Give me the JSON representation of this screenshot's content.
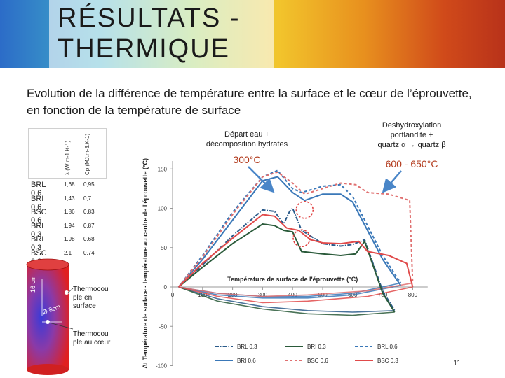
{
  "header": {
    "title_line1": "RÉSULTATS -",
    "title_line2": "THERMIQUE"
  },
  "subtitle": "Evolution de la différence de température entre la surface et le cœur de l’éprouvette, en fonction de la température de surface",
  "annotations": {
    "left_text": [
      "Départ eau +",
      "décomposition hydrates"
    ],
    "left_temp": "300°C",
    "right_text": [
      "Deshydroxylation",
      "portlandite +",
      "quartz α → quartz β"
    ],
    "right_temp": "600 - 650°C"
  },
  "properties": {
    "lambda_header": "λ (W.m-1.K-1)",
    "cp_header": "Cp (MJ.m-3.K-1)",
    "rows": [
      {
        "name": "BRL 0,6",
        "lambda": "1,68",
        "cp": "0,95"
      },
      {
        "name": "BRI 0,6",
        "lambda": "1,43",
        "cp": "0,7"
      },
      {
        "name": "BSC 0,6",
        "lambda": "1,86",
        "cp": "0,83"
      },
      {
        "name": "BRL 0,3",
        "lambda": "1,94",
        "cp": "0,87"
      },
      {
        "name": "BRI 0,3",
        "lambda": "1,98",
        "cp": "0,68"
      },
      {
        "name": "BSC 0,3",
        "lambda": "2,1",
        "cp": "0,74"
      }
    ]
  },
  "specimen": {
    "height_label": "16 cm",
    "diameter_label": "Ø 8cm",
    "thermo_surface": [
      "Thermocou",
      "ple en",
      "surface"
    ],
    "thermo_core": [
      "Thermocou",
      "ple au cœur"
    ]
  },
  "page_number": "11",
  "colors": {
    "brl": "#3a78b8",
    "bri": "#2a5a3a",
    "bsc": "#e04a4a"
  },
  "chart_data": {
    "type": "line",
    "xlabel": "Température de surface de l'éprouvette (°C)",
    "ylabel": "Δt Température de surface - température au centre de l'éprouvette (°C)",
    "xlim": [
      0,
      850
    ],
    "ylim": [
      -100,
      160
    ],
    "x_ticks": [
      0,
      100,
      200,
      300,
      400,
      500,
      600,
      700,
      800
    ],
    "y_ticks": [
      -100,
      -50,
      0,
      50,
      100,
      150
    ],
    "legend_position": "bottom",
    "series": [
      {
        "name": "BRL 0.3",
        "style": "dashdot",
        "color": "#2a5a8a",
        "values": [
          [
            20,
            0
          ],
          [
            100,
            28
          ],
          [
            200,
            65
          ],
          [
            300,
            98
          ],
          [
            340,
            96
          ],
          [
            370,
            80
          ],
          [
            390,
            96
          ],
          [
            400,
            100
          ],
          [
            430,
            72
          ],
          [
            500,
            55
          ],
          [
            560,
            52
          ],
          [
            600,
            54
          ],
          [
            640,
            60
          ],
          [
            700,
            -5
          ],
          [
            740,
            -30
          ]
        ]
      },
      {
        "name": "BRI 0.3",
        "style": "solid",
        "color": "#2a5a3a",
        "values": [
          [
            20,
            0
          ],
          [
            100,
            25
          ],
          [
            200,
            55
          ],
          [
            300,
            80
          ],
          [
            340,
            78
          ],
          [
            370,
            72
          ],
          [
            400,
            70
          ],
          [
            430,
            45
          ],
          [
            500,
            42
          ],
          [
            560,
            40
          ],
          [
            610,
            42
          ],
          [
            640,
            58
          ],
          [
            700,
            -8
          ],
          [
            740,
            -32
          ]
        ]
      },
      {
        "name": "BRL 0.6",
        "style": "dashed",
        "color": "#3a78b8",
        "values": [
          [
            20,
            0
          ],
          [
            100,
            40
          ],
          [
            200,
            95
          ],
          [
            300,
            140
          ],
          [
            350,
            148
          ],
          [
            400,
            125
          ],
          [
            430,
            120
          ],
          [
            500,
            128
          ],
          [
            560,
            130
          ],
          [
            600,
            115
          ],
          [
            700,
            40
          ],
          [
            760,
            5
          ]
        ]
      },
      {
        "name": "BRI 0.6",
        "style": "solid",
        "color": "#3a78b8",
        "values": [
          [
            20,
            0
          ],
          [
            100,
            35
          ],
          [
            200,
            85
          ],
          [
            300,
            135
          ],
          [
            350,
            140
          ],
          [
            400,
            120
          ],
          [
            440,
            110
          ],
          [
            500,
            118
          ],
          [
            560,
            118
          ],
          [
            600,
            108
          ],
          [
            700,
            35
          ],
          [
            760,
            2
          ]
        ]
      },
      {
        "name": "BSC 0.6",
        "style": "dashed",
        "color": "#e07070",
        "values": [
          [
            20,
            0
          ],
          [
            100,
            38
          ],
          [
            200,
            92
          ],
          [
            300,
            140
          ],
          [
            350,
            146
          ],
          [
            400,
            132
          ],
          [
            440,
            118
          ],
          [
            500,
            125
          ],
          [
            560,
            132
          ],
          [
            610,
            130
          ],
          [
            650,
            120
          ],
          [
            720,
            118
          ],
          [
            790,
            110
          ],
          [
            800,
            5
          ]
        ]
      },
      {
        "name": "BSC 0.3",
        "style": "solid",
        "color": "#e04a4a",
        "values": [
          [
            20,
            0
          ],
          [
            100,
            30
          ],
          [
            200,
            62
          ],
          [
            300,
            92
          ],
          [
            340,
            90
          ],
          [
            380,
            75
          ],
          [
            420,
            72
          ],
          [
            460,
            60
          ],
          [
            500,
            56
          ],
          [
            560,
            55
          ],
          [
            620,
            58
          ],
          [
            650,
            45
          ],
          [
            720,
            40
          ],
          [
            780,
            30
          ],
          [
            800,
            0
          ]
        ]
      }
    ],
    "cooling": [
      {
        "name": "BRL 0.3",
        "color": "#2a5a8a",
        "values": [
          [
            740,
            -30
          ],
          [
            600,
            -32
          ],
          [
            450,
            -30
          ],
          [
            300,
            -25
          ],
          [
            150,
            -15
          ],
          [
            20,
            0
          ]
        ]
      },
      {
        "name": "BRI 0.3",
        "color": "#2a5a3a",
        "values": [
          [
            740,
            -32
          ],
          [
            600,
            -36
          ],
          [
            450,
            -34
          ],
          [
            300,
            -28
          ],
          [
            150,
            -18
          ],
          [
            20,
            0
          ]
        ]
      },
      {
        "name": "BRL 0.6",
        "color": "#3a78b8",
        "values": [
          [
            760,
            5
          ],
          [
            600,
            -8
          ],
          [
            450,
            -12
          ],
          [
            300,
            -12
          ],
          [
            150,
            -8
          ],
          [
            20,
            0
          ]
        ]
      },
      {
        "name": "BRI 0.6",
        "color": "#3a78b8",
        "values": [
          [
            760,
            2
          ],
          [
            600,
            -10
          ],
          [
            450,
            -14
          ],
          [
            300,
            -14
          ],
          [
            150,
            -10
          ],
          [
            20,
            0
          ]
        ]
      },
      {
        "name": "BSC 0.6",
        "color": "#e07070",
        "values": [
          [
            800,
            5
          ],
          [
            650,
            -5
          ],
          [
            450,
            -10
          ],
          [
            300,
            -12
          ],
          [
            150,
            -8
          ],
          [
            20,
            0
          ]
        ]
      },
      {
        "name": "BSC 0.3",
        "color": "#e04a4a",
        "values": [
          [
            800,
            0
          ],
          [
            650,
            -12
          ],
          [
            450,
            -18
          ],
          [
            300,
            -20
          ],
          [
            150,
            -12
          ],
          [
            20,
            0
          ]
        ]
      }
    ],
    "markers": [
      {
        "x": 440,
        "y": 98,
        "label": ""
      },
      {
        "x": 430,
        "y": 62,
        "label": ""
      }
    ]
  }
}
